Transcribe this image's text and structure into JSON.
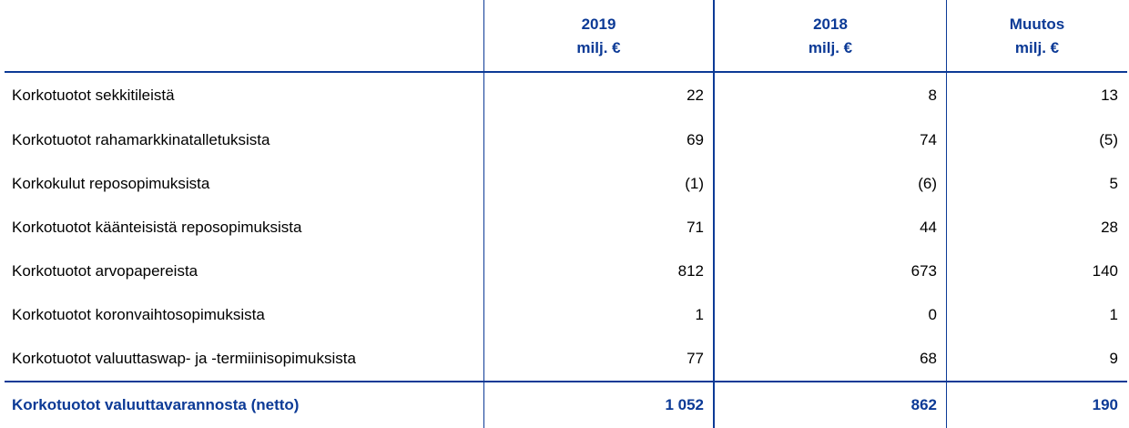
{
  "header": {
    "columns": [
      {
        "line1": "",
        "line2": ""
      },
      {
        "line1": "2019",
        "line2": "milj. €"
      },
      {
        "line1": "2018",
        "line2": "milj. €"
      },
      {
        "line1": "Muutos",
        "line2": "milj. €"
      }
    ]
  },
  "rows": [
    {
      "label": "Korkotuotot sekkitileistä",
      "v2019": "22",
      "v2018": "8",
      "change": "13"
    },
    {
      "label": "Korkotuotot rahamarkkinatalletuksista",
      "v2019": "69",
      "v2018": "74",
      "change": "(5)"
    },
    {
      "label": "Korkokulut reposopimuksista",
      "v2019": "(1)",
      "v2018": "(6)",
      "change": "5"
    },
    {
      "label": "Korkotuotot käänteisistä reposopimuksista",
      "v2019": "71",
      "v2018": "44",
      "change": "28"
    },
    {
      "label": "Korkotuotot arvopapereista",
      "v2019": "812",
      "v2018": "673",
      "change": "140"
    },
    {
      "label": "Korkotuotot koronvaihtosopimuksista",
      "v2019": "1",
      "v2018": "0",
      "change": "1"
    },
    {
      "label": "Korkotuotot valuuttaswap- ja -termiinisopimuksista",
      "v2019": "77",
      "v2018": "68",
      "change": "9"
    }
  ],
  "total": {
    "label": "Korkotuotot valuuttavarannosta (netto)",
    "v2019": "1 052",
    "v2018": "862",
    "change": "190"
  },
  "colors": {
    "accent": "#0c3a96"
  }
}
